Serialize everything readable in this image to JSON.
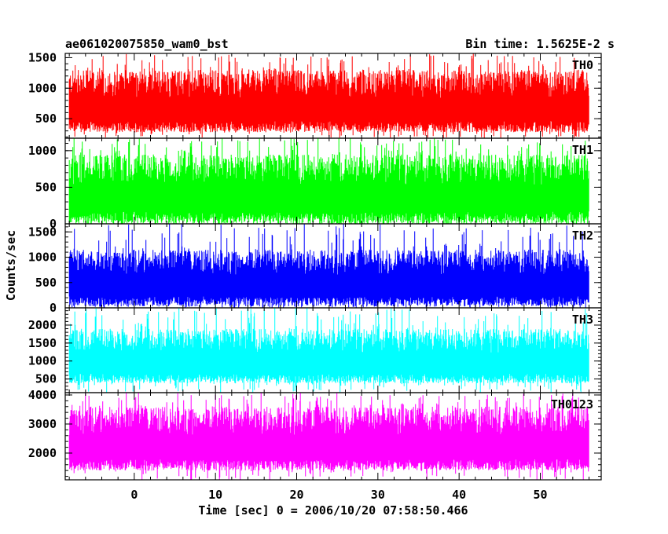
{
  "chart_data": {
    "type": "line",
    "title": "ae061020075850_wam0_bst",
    "subtitle": "Bin time: 1.5625E-2 s",
    "xlabel": "Time [sec] 0 = 2006/10/20 07:58:50.466",
    "ylabel": "Counts/sec",
    "xlim": [
      -8.5,
      57.5
    ],
    "x_data_range": [
      -8.0,
      56.0
    ],
    "x_ticks": [
      0,
      10,
      20,
      30,
      40,
      50
    ],
    "x_tick_labels": [
      "0",
      "10",
      "20",
      "30",
      "40",
      "50"
    ],
    "grid": false,
    "panels": [
      {
        "name": "TH0",
        "color": "#ff0000",
        "ylim": [
          180,
          1570
        ],
        "y_ticks": [
          500,
          1000,
          1500
        ],
        "y_tick_labels": [
          "500",
          "1000",
          "1500"
        ],
        "typical_min": 280,
        "typical_max": 1300,
        "peak_max": 1570
      },
      {
        "name": "TH1",
        "color": "#00ff00",
        "ylim": [
          0,
          1170
        ],
        "y_ticks": [
          0,
          500,
          1000
        ],
        "y_tick_labels": [
          "0",
          "500",
          "1000"
        ],
        "typical_min": 0,
        "typical_max": 950,
        "peak_max": 1170
      },
      {
        "name": "TH2",
        "color": "#0000ff",
        "ylim": [
          0,
          1660
        ],
        "y_ticks": [
          0,
          500,
          1000,
          1500
        ],
        "y_tick_labels": [
          "0",
          "500",
          "1000",
          "1500"
        ],
        "typical_min": 30,
        "typical_max": 1150,
        "peak_max": 1660
      },
      {
        "name": "TH3",
        "color": "#00ffff",
        "ylim": [
          120,
          2480
        ],
        "y_ticks": [
          500,
          1000,
          1500,
          2000
        ],
        "y_tick_labels": [
          "500",
          "1000",
          "1500",
          "2000"
        ],
        "typical_min": 380,
        "typical_max": 1900,
        "peak_max": 2480
      },
      {
        "name": "TH0123",
        "color": "#ff00ff",
        "ylim": [
          1080,
          4080
        ],
        "y_ticks": [
          2000,
          3000,
          4000
        ],
        "y_tick_labels": [
          "2000",
          "3000",
          "4000"
        ],
        "typical_min": 1400,
        "typical_max": 3600,
        "peak_max": 4080
      }
    ]
  }
}
